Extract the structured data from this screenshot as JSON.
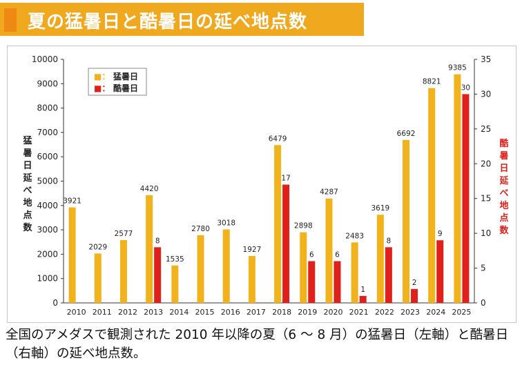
{
  "header": {
    "title": "夏の猛暑日と酷暑日の延べ地点数"
  },
  "axes": {
    "left_label": "猛暑日延べ地点数",
    "right_label": "酷暑日延べ地点数"
  },
  "caption": "全国のアメダスで観測された 2010 年以降の夏（6 ～ 8 月）の猛暑日（左軸）と酷暑日（右軸）の延べ地点数。",
  "colors": {
    "mosho": "#f2b21c",
    "kokusho": "#e0201a",
    "banner": "#f0a81e"
  },
  "chart_data": {
    "type": "bar",
    "categories": [
      "2010",
      "2011",
      "2012",
      "2013",
      "2014",
      "2015",
      "2016",
      "2017",
      "2018",
      "2019",
      "2020",
      "2021",
      "2022",
      "2023",
      "2024",
      "2025"
    ],
    "series": [
      {
        "name": "猛暑日",
        "axis": "left",
        "values": [
          3921,
          2029,
          2577,
          4420,
          1535,
          2780,
          3018,
          1927,
          6479,
          2898,
          4287,
          2483,
          3619,
          6692,
          8821,
          9385
        ],
        "labels": [
          "3921",
          "2029",
          "2577",
          "4420",
          "1535",
          "2780",
          "3018",
          "1927",
          "6479",
          "2898",
          "4287",
          "2483",
          "3619",
          "6692",
          "8821",
          "9385"
        ]
      },
      {
        "name": "酷暑日",
        "axis": "right",
        "values": [
          0,
          0,
          0,
          8,
          0,
          0,
          0,
          0,
          17,
          6,
          6,
          1,
          8,
          2,
          9,
          30
        ],
        "labels": [
          "",
          "",
          "",
          "8",
          "",
          "",
          "",
          "",
          "17",
          "6",
          "6",
          "1",
          "8",
          "2",
          "9",
          "30"
        ]
      }
    ],
    "ylim_left": [
      0,
      10000
    ],
    "yticks_left": [
      "0",
      "1000",
      "2000",
      "3000",
      "4000",
      "5000",
      "6000",
      "7000",
      "8000",
      "9000",
      "10000"
    ],
    "ylim_right": [
      0,
      35
    ],
    "yticks_right": [
      "0",
      "5",
      "10",
      "15",
      "20",
      "25",
      "30",
      "35"
    ],
    "ylabel_left": "猛暑日延べ地点数",
    "ylabel_right": "酷暑日延べ地点数",
    "legend": {
      "placement": "top-left",
      "items": [
        {
          "symbol": "■：",
          "label": "猛暑日"
        },
        {
          "symbol": "■：",
          "label": "酷暑日"
        }
      ]
    },
    "grid": false
  }
}
